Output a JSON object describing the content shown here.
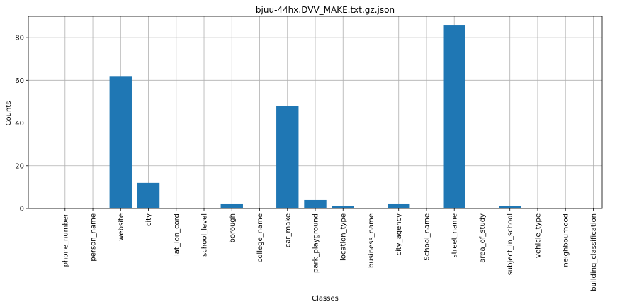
{
  "chart_data": {
    "type": "bar",
    "title": "bjuu-44hx.DVV_MAKE.txt.gz.json",
    "xlabel": "Classes",
    "ylabel": "Counts",
    "categories": [
      "phone_number",
      "person_name",
      "website",
      "city",
      "lat_lon_cord",
      "school_level",
      "borough",
      "college_name",
      "car_make",
      "park_playground",
      "location_type",
      "business_name",
      "city_agency",
      "School_name",
      "street_name",
      "area_of_study",
      "subject_in_school",
      "vehicle_type",
      "neighbourhood",
      "building_classification"
    ],
    "values": [
      0,
      0,
      62,
      12,
      0,
      0,
      2,
      0,
      48,
      4,
      1,
      0,
      2,
      0,
      86,
      0,
      1,
      0,
      0,
      0
    ],
    "ylim": [
      0,
      90
    ],
    "yticks": [
      0,
      20,
      40,
      60,
      80
    ],
    "grid": true,
    "bar_color": "#1f77b4"
  }
}
